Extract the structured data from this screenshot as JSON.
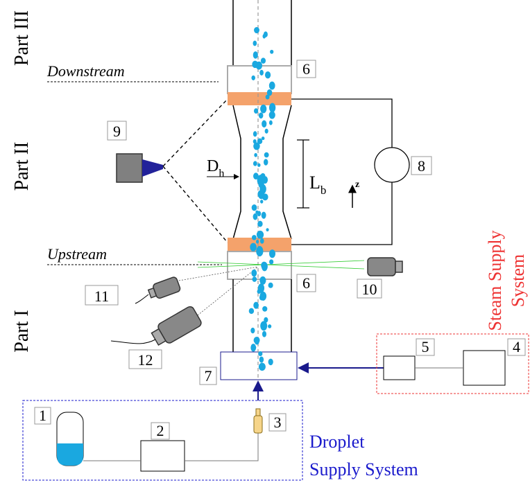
{
  "parts": [
    "Part III",
    "Part II",
    "Part I"
  ],
  "stations": [
    "Downstream",
    "Upstream"
  ],
  "component_labels": [
    "1",
    "2",
    "3",
    "4",
    "5",
    "6",
    "6",
    "7",
    "8",
    "9",
    "10",
    "11",
    "12"
  ],
  "hydraulic_diameter": {
    "symbol": "D",
    "subscript": "h"
  },
  "heated_length": {
    "symbol": "L",
    "subscript": "b"
  },
  "axis": "z",
  "steam_supply": [
    "Steam Supply",
    "System"
  ],
  "droplet_supply": [
    "Droplet",
    "Supply System"
  ]
}
